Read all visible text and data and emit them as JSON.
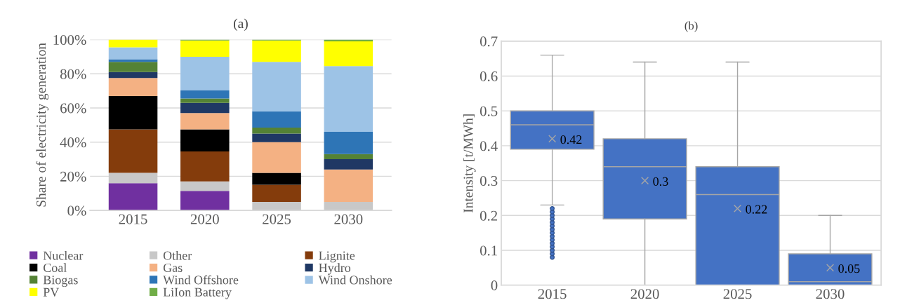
{
  "chart_data": [
    {
      "type": "bar",
      "title": "(a)",
      "ylabel": "Share of electricity generation",
      "stacked": true,
      "categories": [
        "2015",
        "2020",
        "2025",
        "2030"
      ],
      "series": [
        {
          "name": "Nuclear",
          "color": "#7030a0",
          "values": [
            16,
            11.5,
            0,
            0
          ]
        },
        {
          "name": "Other",
          "color": "#c8c8c8",
          "values": [
            6,
            5.5,
            5,
            5
          ]
        },
        {
          "name": "Lignite",
          "color": "#843c0c",
          "values": [
            25.5,
            17.5,
            10,
            0
          ]
        },
        {
          "name": "Coal",
          "color": "#000000",
          "values": [
            19.5,
            13,
            7,
            0
          ]
        },
        {
          "name": "Gas",
          "color": "#f4b183",
          "values": [
            10.5,
            9.5,
            18,
            19
          ]
        },
        {
          "name": "Hydro",
          "color": "#1f3864",
          "values": [
            3.5,
            6,
            5,
            6
          ]
        },
        {
          "name": "Biogas",
          "color": "#548235",
          "values": [
            6,
            2.5,
            3.5,
            3
          ]
        },
        {
          "name": "Wind Offshore",
          "color": "#2e75b6",
          "values": [
            1.5,
            5,
            9.5,
            13
          ]
        },
        {
          "name": "Wind Onshore",
          "color": "#9dc3e6",
          "values": [
            7,
            19.5,
            29,
            38.5
          ]
        },
        {
          "name": "PV",
          "color": "#ffff00",
          "values": [
            4.5,
            9.5,
            12.5,
            14.5
          ]
        },
        {
          "name": "LiIon Battery",
          "color": "#70ad47",
          "values": [
            0,
            0.5,
            0.5,
            1
          ]
        }
      ],
      "ylim": [
        0,
        100
      ],
      "yticks": [
        {
          "value": 0,
          "label": "0%"
        },
        {
          "value": 20,
          "label": "20%"
        },
        {
          "value": 40,
          "label": "40%"
        },
        {
          "value": 60,
          "label": "60%"
        },
        {
          "value": 80,
          "label": "80%"
        },
        {
          "value": 100,
          "label": "100%"
        }
      ],
      "grid": "y",
      "legend": "bottom"
    },
    {
      "type": "box",
      "title": "(b)",
      "ylabel": "Intensity [t/MWh]",
      "categories": [
        "2015",
        "2020",
        "2025",
        "2030"
      ],
      "color": "#4472c4",
      "boxes": [
        {
          "low": 0.23,
          "q1": 0.39,
          "median": 0.46,
          "q3": 0.5,
          "high": 0.66,
          "mean": 0.42,
          "outliers": [
            0.08,
            0.09,
            0.1,
            0.11,
            0.12,
            0.13,
            0.14,
            0.15,
            0.16,
            0.17,
            0.18,
            0.19,
            0.2,
            0.21,
            0.22
          ]
        },
        {
          "low": 0,
          "q1": 0.19,
          "median": 0.34,
          "q3": 0.42,
          "high": 0.64,
          "mean": 0.3
        },
        {
          "low": 0,
          "q1": 0,
          "median": 0.26,
          "q3": 0.34,
          "high": 0.64,
          "mean": 0.22
        },
        {
          "low": 0,
          "q1": 0,
          "median": 0.01,
          "q3": 0.09,
          "high": 0.2,
          "mean": 0.05
        }
      ],
      "value_labels": [
        "0.42",
        "0.3",
        "0.22",
        "0.05"
      ],
      "ylim": [
        0,
        0.7
      ],
      "yticks": [
        0,
        0.1,
        0.2,
        0.3,
        0.4,
        0.5,
        0.6,
        0.7
      ],
      "grid": "y",
      "marker": "cross"
    }
  ]
}
